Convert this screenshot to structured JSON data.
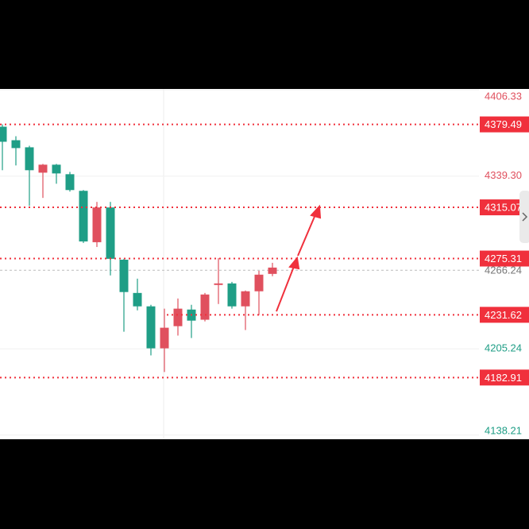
{
  "chart_data": {
    "type": "candlestick",
    "open": [
      4377.7,
      4367.2,
      4361.7,
      4342.0,
      4348.2,
      4340.8,
      4327.9,
      4288.0,
      4315.0,
      4274.4,
      4248.6,
      4238.2,
      4205.6,
      4222.8,
      4235.7,
      4227.8,
      4254.8,
      4256.0,
      4238.2,
      4249.9,
      4263.4
    ],
    "high": [
      4379.5,
      4370.3,
      4362.9,
      4348.8,
      4348.8,
      4342.6,
      4328.5,
      4319.3,
      4319.3,
      4275.1,
      4259.7,
      4239.4,
      4236.4,
      4244.3,
      4239.4,
      4248.6,
      4275.7,
      4257.2,
      4250.5,
      4265.8,
      4272.0
    ],
    "low": [
      4343.9,
      4347.6,
      4316.2,
      4322.4,
      4333.4,
      4327.3,
      4287.4,
      4284.3,
      4262.2,
      4218.5,
      4235.1,
      4200.1,
      4187.2,
      4215.5,
      4213.6,
      4226.5,
      4240.0,
      4236.4,
      4219.8,
      4231.4,
      4261.6
    ],
    "close": [
      4366.0,
      4361.1,
      4343.9,
      4348.2,
      4341.4,
      4328.5,
      4288.6,
      4315.0,
      4275.1,
      4249.3,
      4238.2,
      4205.6,
      4221.6,
      4236.4,
      4227.1,
      4247.4,
      4256.0,
      4238.2,
      4249.9,
      4262.8,
      4268.3
    ],
    "up_color": "#e0505e",
    "down_color": "#1f9e86",
    "ylim": [
      4135,
      4407
    ],
    "yticks": [
      4406.33,
      {
        "value": 4339.3,
        "label": "4339.30"
      },
      4205.24,
      4138.21
    ],
    "grid": true,
    "levels": [
      4379.49,
      4315.07,
      4275.31,
      4231.62,
      4182.91
    ],
    "level_color": "#f0303c",
    "current_price": 4266.24
  }
}
